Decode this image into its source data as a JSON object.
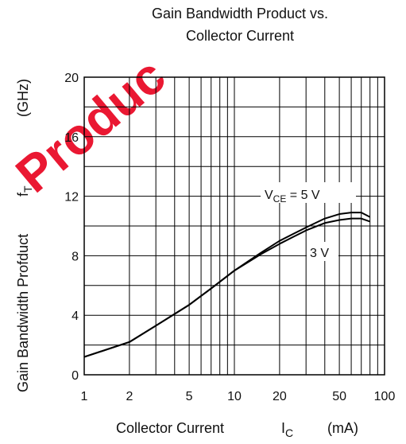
{
  "chart_data": {
    "type": "line",
    "title": [
      "Gain Bandwidth Product vs.",
      "Collector Current"
    ],
    "xlabel": {
      "main": "Collector Current",
      "symbol": "I",
      "subscript": "C",
      "unit": "(mA)"
    },
    "ylabel": {
      "main": "Gain Bandwidth Profduct",
      "symbol": "f",
      "subscript": "T",
      "unit": "(GHz)"
    },
    "x_scale": "log",
    "xlim": [
      1,
      100
    ],
    "ylim": [
      0,
      20
    ],
    "x_ticks": [
      1,
      2,
      5,
      10,
      20,
      50,
      100
    ],
    "x_tick_labels": [
      "1",
      "2",
      "5",
      "10",
      "20",
      "50",
      "100"
    ],
    "y_ticks": [
      0,
      4,
      8,
      12,
      16,
      20
    ],
    "y_tick_labels": [
      "0",
      "4",
      "8",
      "12",
      "16",
      "20"
    ],
    "grid": true,
    "series": [
      {
        "name": "V_CE = 5 V",
        "x": [
          1,
          2,
          3,
          5,
          7,
          10,
          15,
          20,
          25,
          30,
          40,
          50,
          60,
          70,
          80
        ],
        "y": [
          1.2,
          2.2,
          3.3,
          4.7,
          5.8,
          7.0,
          8.2,
          9.0,
          9.5,
          9.9,
          10.5,
          10.8,
          10.9,
          10.9,
          10.6
        ]
      },
      {
        "name": "3 V",
        "x": [
          1,
          2,
          3,
          5,
          7,
          10,
          15,
          20,
          25,
          30,
          40,
          50,
          60,
          70,
          80
        ],
        "y": [
          1.2,
          2.2,
          3.3,
          4.7,
          5.8,
          7.0,
          8.1,
          8.8,
          9.3,
          9.7,
          10.2,
          10.4,
          10.5,
          10.5,
          10.3
        ]
      }
    ],
    "annotations": [
      {
        "text_main": "V",
        "text_sub": "CE",
        "text_rest": " = 5 V"
      },
      {
        "text": "3 V"
      }
    ]
  },
  "watermark": {
    "text": "Produc"
  }
}
